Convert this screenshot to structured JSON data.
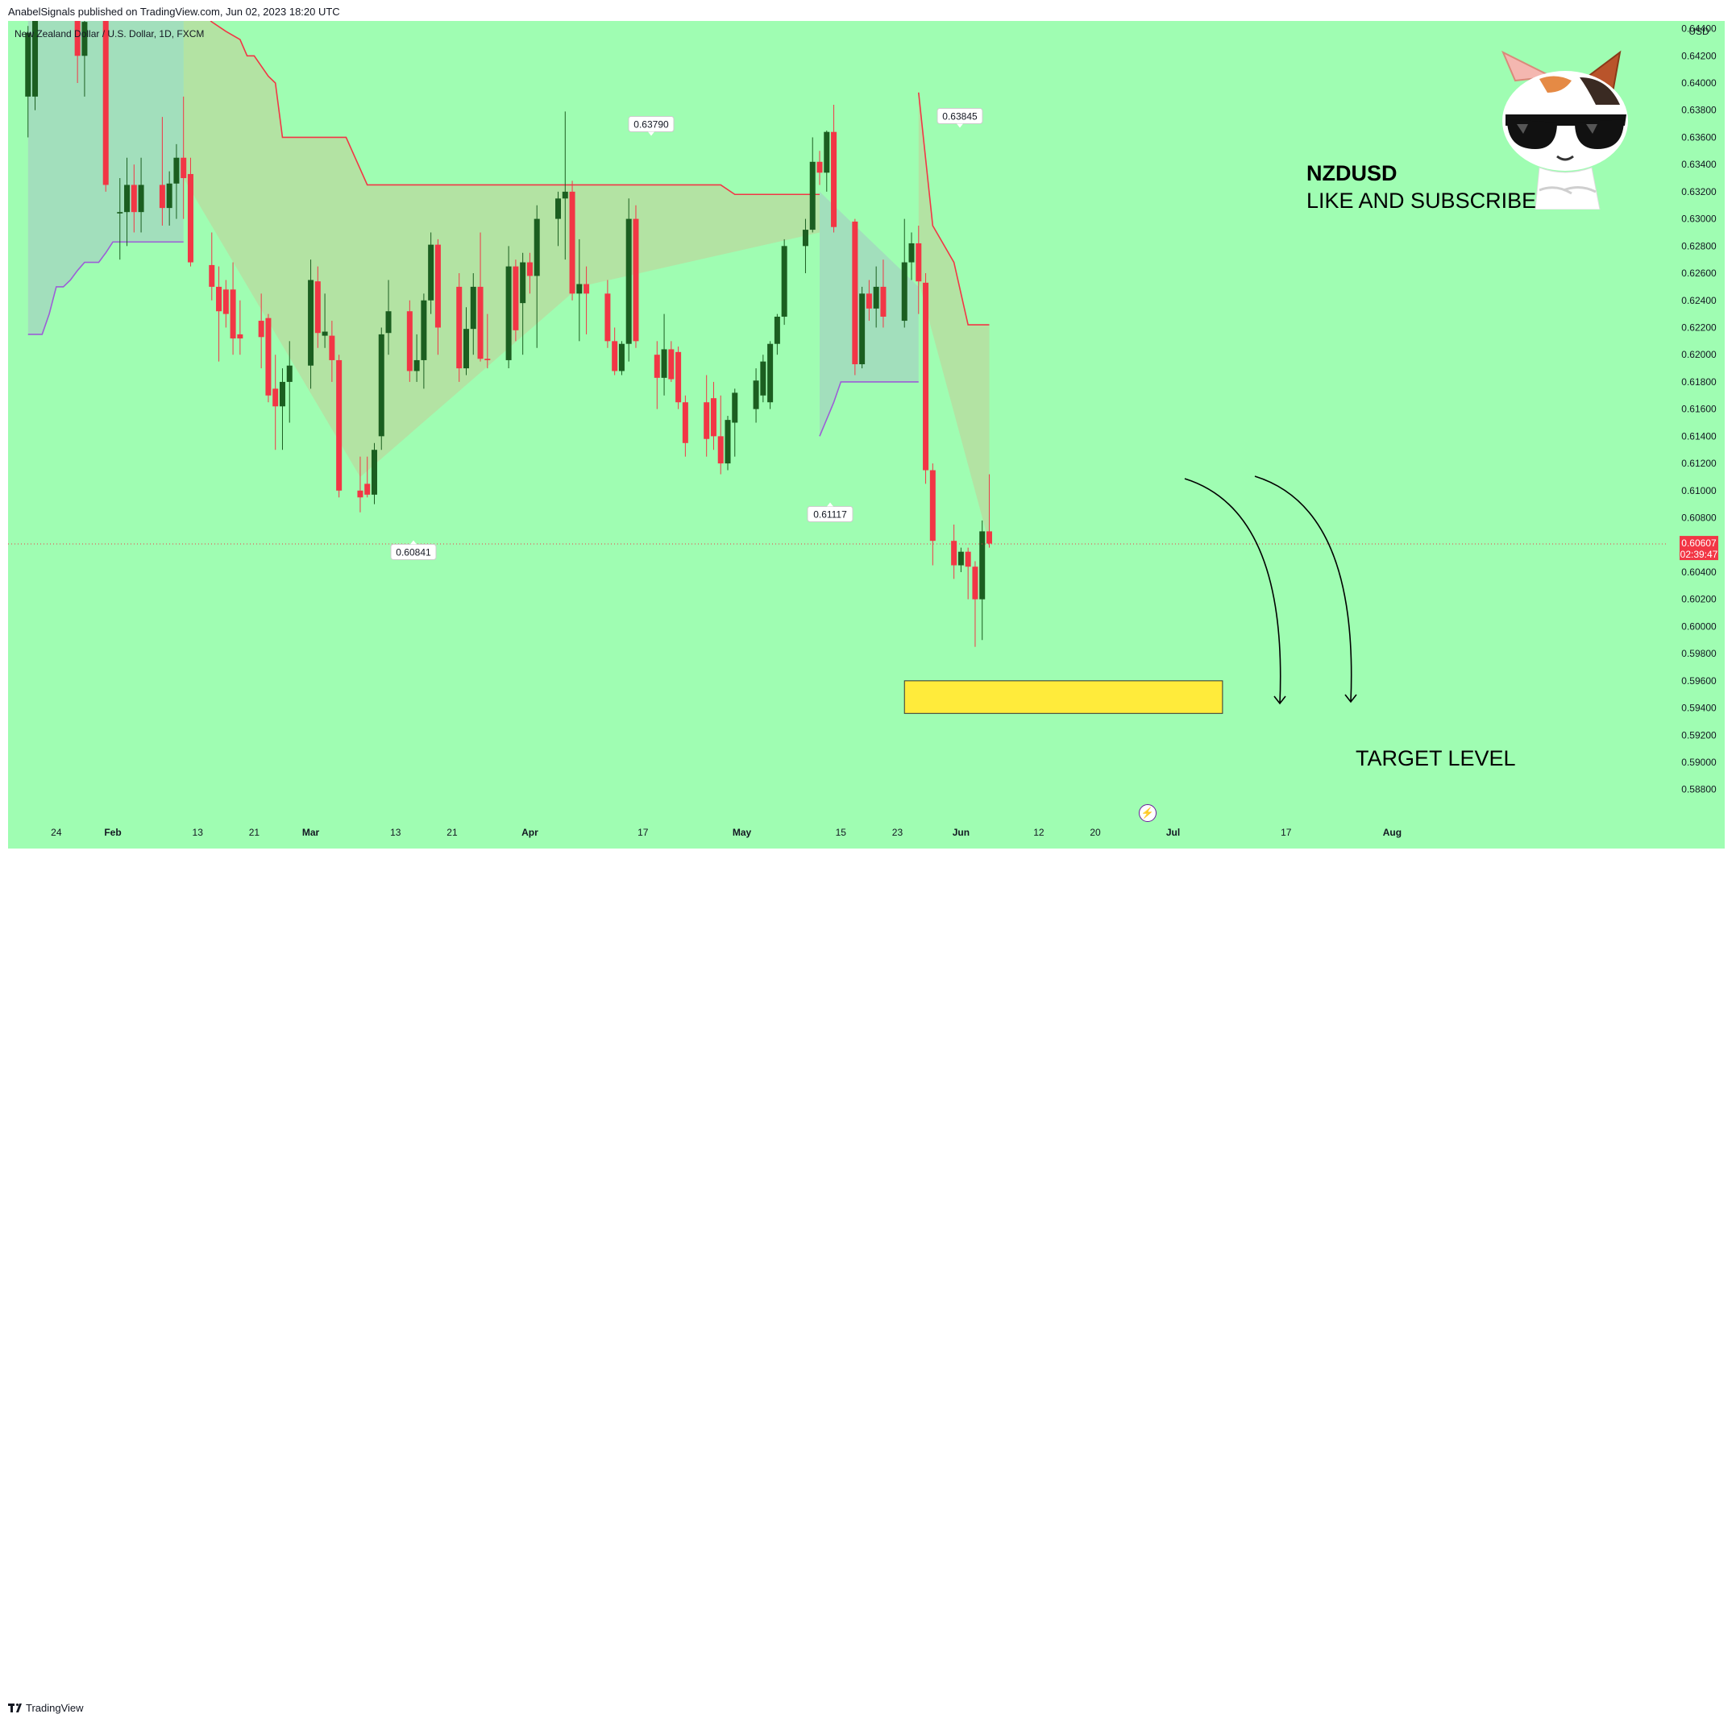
{
  "header": {
    "publisher_text": "AnabelSignals published on TradingView.com, Jun 02, 2023 18:20 UTC",
    "symbol_text": "New Zealand Dollar / U.S. Dollar, 1D, FXCM"
  },
  "annotations": {
    "pair": "NZDUSD",
    "subtitle": "LIKE AND SUBSCRIBE",
    "target": "TARGET LEVEL"
  },
  "footer": {
    "brand": "TradingView"
  },
  "colors": {
    "background": "#9ffdb2",
    "bull": "#1b5e20",
    "bear": "#f23645",
    "resistance": "#f23645",
    "support": "#9c5fd6",
    "target_zone": "#ffeb3b"
  },
  "chart_data": {
    "type": "candlestick",
    "currency": "USD",
    "ylim": [
      0.5871,
      0.6459
    ],
    "y_ticks": [
      0.644,
      0.642,
      0.64,
      0.638,
      0.636,
      0.634,
      0.632,
      0.63,
      0.628,
      0.626,
      0.624,
      0.622,
      0.62,
      0.618,
      0.616,
      0.614,
      0.612,
      0.61,
      0.608,
      0.606,
      0.604,
      0.602,
      0.6,
      0.598,
      0.596,
      0.594,
      0.592,
      0.59,
      0.588
    ],
    "x_ticks": [
      {
        "label": "24",
        "day": -8
      },
      {
        "label": "Feb",
        "day": 0
      },
      {
        "label": "13",
        "day": 12
      },
      {
        "label": "21",
        "day": 20
      },
      {
        "label": "Mar",
        "day": 28
      },
      {
        "label": "13",
        "day": 40
      },
      {
        "label": "21",
        "day": 48
      },
      {
        "label": "Apr",
        "day": 59
      },
      {
        "label": "17",
        "day": 75
      },
      {
        "label": "May",
        "day": 89
      },
      {
        "label": "15",
        "day": 103
      },
      {
        "label": "23",
        "day": 111
      },
      {
        "label": "Jun",
        "day": 120
      },
      {
        "label": "12",
        "day": 131
      },
      {
        "label": "20",
        "day": 139
      },
      {
        "label": "Jul",
        "day": 150
      },
      {
        "label": "17",
        "day": 166
      },
      {
        "label": "Aug",
        "day": 181
      }
    ],
    "last_price": {
      "value": 0.60607,
      "countdown": "02:39:47"
    },
    "pivot_labels": [
      {
        "value": "0.63790",
        "day": 62
      },
      {
        "value": "0.63845",
        "day": 110
      },
      {
        "value": "0.60841",
        "day": 38
      },
      {
        "value": "0.61117",
        "day": 80
      }
    ],
    "target_zone": {
      "from_day": 112,
      "to_day": 157,
      "top": 0.596,
      "bottom": 0.5936
    },
    "candles": [
      {
        "day": -12,
        "o": 0.639,
        "h": 0.6442,
        "l": 0.636,
        "c": 0.6437
      },
      {
        "day": -11,
        "o": 0.639,
        "h": 0.646,
        "l": 0.638,
        "c": 0.645
      },
      {
        "day": -5,
        "o": 0.645,
        "h": 0.646,
        "l": 0.64,
        "c": 0.642
      },
      {
        "day": -4,
        "o": 0.642,
        "h": 0.6455,
        "l": 0.639,
        "c": 0.6445
      },
      {
        "day": -1,
        "o": 0.6455,
        "h": 0.646,
        "l": 0.632,
        "c": 0.6325
      },
      {
        "day": 1,
        "o": 0.6304,
        "h": 0.633,
        "l": 0.627,
        "c": 0.6305
      },
      {
        "day": 2,
        "o": 0.6305,
        "h": 0.6345,
        "l": 0.628,
        "c": 0.6325
      },
      {
        "day": 3,
        "o": 0.6325,
        "h": 0.634,
        "l": 0.629,
        "c": 0.6305
      },
      {
        "day": 4,
        "o": 0.6305,
        "h": 0.6345,
        "l": 0.629,
        "c": 0.6325
      },
      {
        "day": 7,
        "o": 0.6325,
        "h": 0.6375,
        "l": 0.6295,
        "c": 0.6308
      },
      {
        "day": 8,
        "o": 0.6308,
        "h": 0.6335,
        "l": 0.6295,
        "c": 0.6326
      },
      {
        "day": 9,
        "o": 0.6326,
        "h": 0.6355,
        "l": 0.63,
        "c": 0.6345
      },
      {
        "day": 10,
        "o": 0.6345,
        "h": 0.639,
        "l": 0.63,
        "c": 0.633
      },
      {
        "day": 11,
        "o": 0.6333,
        "h": 0.6345,
        "l": 0.6265,
        "c": 0.6268
      },
      {
        "day": 14,
        "o": 0.6266,
        "h": 0.629,
        "l": 0.624,
        "c": 0.625
      },
      {
        "day": 15,
        "o": 0.625,
        "h": 0.6265,
        "l": 0.6195,
        "c": 0.6232
      },
      {
        "day": 16,
        "o": 0.6248,
        "h": 0.6255,
        "l": 0.622,
        "c": 0.623
      },
      {
        "day": 17,
        "o": 0.6248,
        "h": 0.6268,
        "l": 0.62,
        "c": 0.6212
      },
      {
        "day": 18,
        "o": 0.6215,
        "h": 0.624,
        "l": 0.62,
        "c": 0.6212
      },
      {
        "day": 21,
        "o": 0.6225,
        "h": 0.6245,
        "l": 0.619,
        "c": 0.6213
      },
      {
        "day": 22,
        "o": 0.6227,
        "h": 0.623,
        "l": 0.6165,
        "c": 0.617
      },
      {
        "day": 23,
        "o": 0.6175,
        "h": 0.62,
        "l": 0.613,
        "c": 0.6162
      },
      {
        "day": 24,
        "o": 0.6162,
        "h": 0.619,
        "l": 0.613,
        "c": 0.618
      },
      {
        "day": 25,
        "o": 0.618,
        "h": 0.621,
        "l": 0.615,
        "c": 0.6192
      },
      {
        "day": 28,
        "o": 0.6192,
        "h": 0.627,
        "l": 0.6175,
        "c": 0.6255
      },
      {
        "day": 29,
        "o": 0.6254,
        "h": 0.6265,
        "l": 0.6205,
        "c": 0.6216
      },
      {
        "day": 30,
        "o": 0.6214,
        "h": 0.6245,
        "l": 0.6205,
        "c": 0.6217
      },
      {
        "day": 31,
        "o": 0.6214,
        "h": 0.6225,
        "l": 0.618,
        "c": 0.6196
      },
      {
        "day": 32,
        "o": 0.6196,
        "h": 0.62,
        "l": 0.6095,
        "c": 0.61
      },
      {
        "day": 35,
        "o": 0.61,
        "h": 0.6125,
        "l": 0.6084,
        "c": 0.6095
      },
      {
        "day": 36,
        "o": 0.6105,
        "h": 0.6125,
        "l": 0.6095,
        "c": 0.6097
      },
      {
        "day": 37,
        "o": 0.6097,
        "h": 0.6135,
        "l": 0.609,
        "c": 0.613
      },
      {
        "day": 38,
        "o": 0.614,
        "h": 0.622,
        "l": 0.613,
        "c": 0.6215
      },
      {
        "day": 39,
        "o": 0.6216,
        "h": 0.6255,
        "l": 0.62,
        "c": 0.6232
      },
      {
        "day": 42,
        "o": 0.6232,
        "h": 0.624,
        "l": 0.618,
        "c": 0.6188
      },
      {
        "day": 43,
        "o": 0.6188,
        "h": 0.6215,
        "l": 0.618,
        "c": 0.6196
      },
      {
        "day": 44,
        "o": 0.6196,
        "h": 0.6245,
        "l": 0.6175,
        "c": 0.624
      },
      {
        "day": 45,
        "o": 0.624,
        "h": 0.629,
        "l": 0.623,
        "c": 0.6281
      },
      {
        "day": 46,
        "o": 0.6281,
        "h": 0.6285,
        "l": 0.62,
        "c": 0.622
      },
      {
        "day": 49,
        "o": 0.625,
        "h": 0.626,
        "l": 0.618,
        "c": 0.619
      },
      {
        "day": 50,
        "o": 0.619,
        "h": 0.6235,
        "l": 0.6185,
        "c": 0.6219
      },
      {
        "day": 51,
        "o": 0.6219,
        "h": 0.626,
        "l": 0.62,
        "c": 0.625
      },
      {
        "day": 52,
        "o": 0.625,
        "h": 0.629,
        "l": 0.6195,
        "c": 0.6197
      },
      {
        "day": 53,
        "o": 0.6197,
        "h": 0.623,
        "l": 0.619,
        "c": 0.6196
      },
      {
        "day": 56,
        "o": 0.6196,
        "h": 0.628,
        "l": 0.619,
        "c": 0.6265
      },
      {
        "day": 57,
        "o": 0.6265,
        "h": 0.627,
        "l": 0.621,
        "c": 0.6218
      },
      {
        "day": 58,
        "o": 0.6238,
        "h": 0.6275,
        "l": 0.62,
        "c": 0.6268
      },
      {
        "day": 59,
        "o": 0.6268,
        "h": 0.6275,
        "l": 0.6245,
        "c": 0.6258
      },
      {
        "day": 60,
        "o": 0.6258,
        "h": 0.631,
        "l": 0.6205,
        "c": 0.63
      },
      {
        "day": 63,
        "o": 0.63,
        "h": 0.632,
        "l": 0.628,
        "c": 0.6315
      },
      {
        "day": 64,
        "o": 0.6315,
        "h": 0.6379,
        "l": 0.627,
        "c": 0.632
      },
      {
        "day": 65,
        "o": 0.632,
        "h": 0.6328,
        "l": 0.624,
        "c": 0.6245
      },
      {
        "day": 66,
        "o": 0.6245,
        "h": 0.6285,
        "l": 0.621,
        "c": 0.6252
      },
      {
        "day": 67,
        "o": 0.6252,
        "h": 0.6265,
        "l": 0.6215,
        "c": 0.6245
      },
      {
        "day": 70,
        "o": 0.6245,
        "h": 0.6255,
        "l": 0.6205,
        "c": 0.621
      },
      {
        "day": 71,
        "o": 0.621,
        "h": 0.622,
        "l": 0.6185,
        "c": 0.6188
      },
      {
        "day": 72,
        "o": 0.6188,
        "h": 0.621,
        "l": 0.6185,
        "c": 0.6208
      },
      {
        "day": 73,
        "o": 0.6208,
        "h": 0.6315,
        "l": 0.6195,
        "c": 0.63
      },
      {
        "day": 74,
        "o": 0.63,
        "h": 0.631,
        "l": 0.6205,
        "c": 0.621
      },
      {
        "day": 77,
        "o": 0.62,
        "h": 0.621,
        "l": 0.616,
        "c": 0.6183
      },
      {
        "day": 78,
        "o": 0.6183,
        "h": 0.623,
        "l": 0.617,
        "c": 0.6204
      },
      {
        "day": 79,
        "o": 0.6204,
        "h": 0.621,
        "l": 0.618,
        "c": 0.6182
      },
      {
        "day": 80,
        "o": 0.6202,
        "h": 0.6206,
        "l": 0.616,
        "c": 0.6165
      },
      {
        "day": 81,
        "o": 0.6165,
        "h": 0.617,
        "l": 0.6125,
        "c": 0.6135
      },
      {
        "day": 84,
        "o": 0.6165,
        "h": 0.6185,
        "l": 0.6125,
        "c": 0.6138
      },
      {
        "day": 85,
        "o": 0.6168,
        "h": 0.618,
        "l": 0.613,
        "c": 0.614
      },
      {
        "day": 86,
        "o": 0.614,
        "h": 0.617,
        "l": 0.6112,
        "c": 0.612
      },
      {
        "day": 87,
        "o": 0.612,
        "h": 0.6155,
        "l": 0.6115,
        "c": 0.6152
      },
      {
        "day": 88,
        "o": 0.615,
        "h": 0.6175,
        "l": 0.6125,
        "c": 0.6172
      },
      {
        "day": 91,
        "o": 0.616,
        "h": 0.619,
        "l": 0.615,
        "c": 0.6181
      },
      {
        "day": 92,
        "o": 0.617,
        "h": 0.62,
        "l": 0.6165,
        "c": 0.6195
      },
      {
        "day": 93,
        "o": 0.6165,
        "h": 0.621,
        "l": 0.616,
        "c": 0.6208
      },
      {
        "day": 94,
        "o": 0.6208,
        "h": 0.623,
        "l": 0.62,
        "c": 0.6228
      },
      {
        "day": 95,
        "o": 0.6228,
        "h": 0.6285,
        "l": 0.6222,
        "c": 0.628
      },
      {
        "day": 98,
        "o": 0.628,
        "h": 0.63,
        "l": 0.626,
        "c": 0.6292
      },
      {
        "day": 99,
        "o": 0.6292,
        "h": 0.636,
        "l": 0.629,
        "c": 0.6342
      },
      {
        "day": 100,
        "o": 0.6342,
        "h": 0.635,
        "l": 0.6325,
        "c": 0.6334
      },
      {
        "day": 101,
        "o": 0.6334,
        "h": 0.6365,
        "l": 0.632,
        "c": 0.6364
      },
      {
        "day": 102,
        "o": 0.6364,
        "h": 0.6384,
        "l": 0.629,
        "c": 0.6294
      },
      {
        "day": 105,
        "o": 0.6298,
        "h": 0.63,
        "l": 0.6185,
        "c": 0.6193
      },
      {
        "day": 106,
        "o": 0.6193,
        "h": 0.625,
        "l": 0.619,
        "c": 0.6245
      },
      {
        "day": 107,
        "o": 0.6245,
        "h": 0.6255,
        "l": 0.6225,
        "c": 0.6234
      },
      {
        "day": 108,
        "o": 0.6234,
        "h": 0.6265,
        "l": 0.622,
        "c": 0.625
      },
      {
        "day": 109,
        "o": 0.625,
        "h": 0.627,
        "l": 0.622,
        "c": 0.6228
      },
      {
        "day": 112,
        "o": 0.6225,
        "h": 0.63,
        "l": 0.622,
        "c": 0.6268
      },
      {
        "day": 113,
        "o": 0.6268,
        "h": 0.629,
        "l": 0.6255,
        "c": 0.6282
      },
      {
        "day": 114,
        "o": 0.6282,
        "h": 0.6295,
        "l": 0.623,
        "c": 0.6254
      },
      {
        "day": 115,
        "o": 0.6253,
        "h": 0.626,
        "l": 0.6105,
        "c": 0.6115
      },
      {
        "day": 116,
        "o": 0.6115,
        "h": 0.612,
        "l": 0.6045,
        "c": 0.6063
      },
      {
        "day": 119,
        "o": 0.6063,
        "h": 0.6075,
        "l": 0.6035,
        "c": 0.6045
      },
      {
        "day": 120,
        "o": 0.6045,
        "h": 0.6058,
        "l": 0.604,
        "c": 0.6055
      },
      {
        "day": 121,
        "o": 0.6055,
        "h": 0.6058,
        "l": 0.602,
        "c": 0.6044
      },
      {
        "day": 122,
        "o": 0.6044,
        "h": 0.6048,
        "l": 0.5985,
        "c": 0.602
      },
      {
        "day": 123,
        "o": 0.602,
        "h": 0.6078,
        "l": 0.599,
        "c": 0.607
      },
      {
        "day": 124,
        "o": 0.607,
        "h": 0.6112,
        "l": 0.6058,
        "c": 0.6061
      }
    ],
    "resistance_line": [
      [
        10,
        0.646
      ],
      [
        11,
        0.646
      ],
      [
        12,
        0.6455
      ],
      [
        14,
        0.6445
      ],
      [
        16,
        0.6438
      ],
      [
        18,
        0.6432
      ],
      [
        19,
        0.642
      ],
      [
        20,
        0.642
      ],
      [
        22,
        0.6405
      ],
      [
        23,
        0.64
      ],
      [
        24,
        0.636
      ],
      [
        26,
        0.636
      ],
      [
        30,
        0.636
      ],
      [
        33,
        0.636
      ],
      [
        36,
        0.6325
      ],
      [
        47,
        0.6325
      ],
      [
        56,
        0.6325
      ],
      [
        66,
        0.6325
      ],
      [
        74,
        0.6325
      ],
      [
        86,
        0.6325
      ],
      [
        88,
        0.6318
      ],
      [
        100,
        0.6318
      ],
      [
        114,
        0.6393
      ],
      [
        116,
        0.6295
      ],
      [
        119,
        0.6268
      ],
      [
        121,
        0.6222
      ],
      [
        124,
        0.6222
      ]
    ],
    "support_line": [
      [
        -12,
        0.6215
      ],
      [
        -11,
        0.6215
      ],
      [
        -10,
        0.6215
      ],
      [
        -9,
        0.623
      ],
      [
        -8,
        0.625
      ],
      [
        -7,
        0.625
      ],
      [
        -6,
        0.6255
      ],
      [
        -5,
        0.6262
      ],
      [
        -4,
        0.6268
      ],
      [
        -3,
        0.6268
      ],
      [
        -2,
        0.6268
      ],
      [
        -1,
        0.6275
      ],
      [
        0,
        0.6283
      ],
      [
        10,
        0.6283
      ]
    ],
    "support_line_2": [
      [
        100,
        0.614
      ],
      [
        102,
        0.6165
      ],
      [
        103,
        0.618
      ],
      [
        114,
        0.618
      ]
    ]
  }
}
